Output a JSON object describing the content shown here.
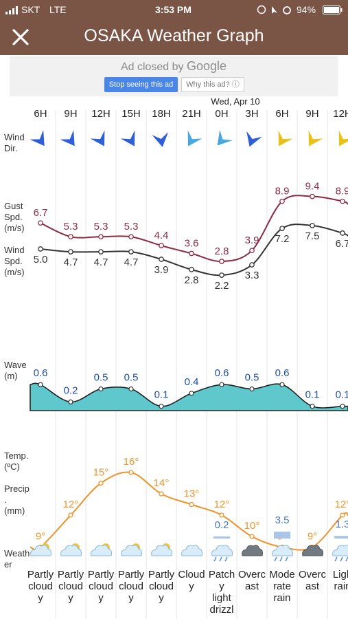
{
  "status_bar": {
    "carrier": "SKT",
    "network": "LTE",
    "time": "3:53 PM",
    "battery": "94%"
  },
  "app_bar": {
    "title": "OSAKA Weather Graph",
    "close_icon": "close-icon"
  },
  "ad": {
    "closed_text": "Ad closed by",
    "brand": "Google",
    "stop_label": "Stop seeing this ad",
    "why_label": "Why this ad? ⓘ"
  },
  "labels": {
    "wind_dir": [
      "Wind",
      "Dir."
    ],
    "gust": [
      "Gust",
      "Spd.",
      "(m/s)"
    ],
    "wind_spd": [
      "Wind",
      "Spd.",
      "(m/s)"
    ],
    "wave": [
      "Wave",
      "(m)"
    ],
    "temp": [
      "Temp.",
      "(ºC)"
    ],
    "precip": [
      "Precip",
      ".",
      "(mm)"
    ],
    "weather": [
      "Weath",
      "er"
    ]
  },
  "colors": {
    "appbar": "#7a5545",
    "gust": "#8b2a44",
    "wind": "#333333",
    "wave": "#5ec8cc",
    "temp": "#f0922b",
    "precip": "#4b77b5"
  },
  "date_label": "Wed, Apr 10",
  "chart_data": {
    "type": "line",
    "hours": [
      "6H",
      "9H",
      "12H",
      "15H",
      "18H",
      "21H",
      "0H",
      "3H",
      "6H",
      "9H",
      "12H"
    ],
    "wind_direction_icons": [
      "wind-arrow-blue",
      "wind-arrow-blue",
      "wind-arrow-blue",
      "wind-arrow-blue",
      "wind-arrow-blue",
      "wind-arrow-lightblue",
      "wind-arrow-lightblue",
      "wind-arrow-blue",
      "wind-arrow-yellow",
      "wind-arrow-yellow",
      "wind-arrow-yellow"
    ],
    "gust_speed": [
      "6.7",
      "5.3",
      "5.3",
      "5.3",
      "4.4",
      "3.6",
      "2.8",
      "3.9",
      "8.9",
      "9.4",
      "8.9"
    ],
    "wind_speed": [
      "5.0",
      "4.7",
      "4.7",
      "4.7",
      "3.9",
      "2.8",
      "2.2",
      "3.3",
      "7.2",
      "7.5",
      "6.7"
    ],
    "wave_height": [
      "0.6",
      "0.2",
      "0.5",
      "0.5",
      "0.1",
      "0.4",
      "0.6",
      "0.5",
      "0.6",
      "0.1",
      "0.1"
    ],
    "temperature": [
      "9°",
      "12°",
      "15°",
      "16°",
      "14°",
      "13°",
      "12°",
      "10°",
      "9°",
      "9°",
      "12°"
    ],
    "temperature_values": [
      9,
      12,
      15,
      16,
      14,
      13,
      12,
      10,
      9,
      9,
      12
    ],
    "precipitation": [
      "",
      "",
      "",
      "",
      "",
      "",
      "0.2",
      "",
      "3.5",
      "",
      "1.3"
    ],
    "weather_icons": [
      "partly-cloudy-icon",
      "partly-cloudy-icon",
      "partly-cloudy-icon",
      "partly-cloudy-icon",
      "partly-cloudy-icon",
      "cloudy-icon",
      "patchy-drizzle-icon",
      "overcast-icon",
      "moderate-rain-icon",
      "overcast-icon",
      "light-rain-icon"
    ],
    "weather_text": [
      [
        "Partly",
        "cloud",
        "y"
      ],
      [
        "Partly",
        "cloud",
        "y"
      ],
      [
        "Partly",
        "cloud",
        "y"
      ],
      [
        "Partly",
        "cloud",
        "y"
      ],
      [
        "Partly",
        "cloud",
        "y"
      ],
      [
        "Cloud",
        "y"
      ],
      [
        "Patch",
        "y",
        "light",
        "drizzl"
      ],
      [
        "Overc",
        "ast"
      ],
      [
        "Mode",
        "rate",
        "rain"
      ],
      [
        "Overc",
        "ast"
      ],
      [
        "Ligh",
        "rain"
      ]
    ]
  }
}
